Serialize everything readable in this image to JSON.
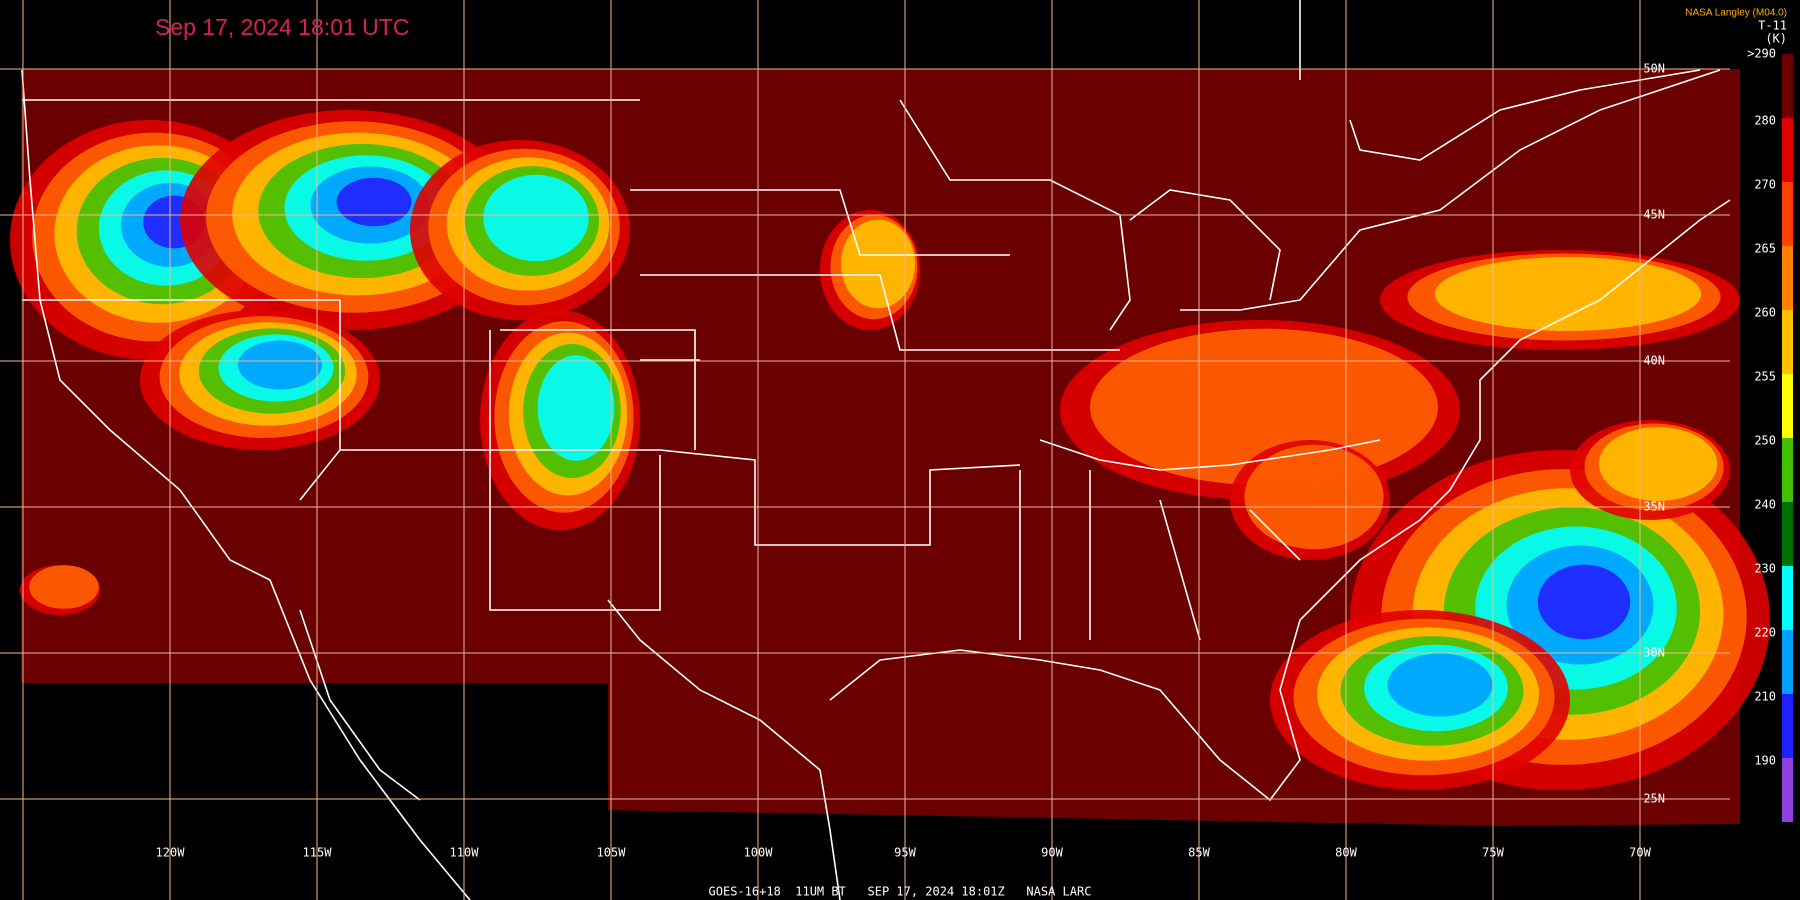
{
  "header": {
    "title": "Sep 17, 2024 18:01 UTC",
    "source": "NASA Langley (M04.0)",
    "product": "T-11",
    "unit": "(K)"
  },
  "color_scale": [
    {
      "label": ">290",
      "color": "#6b0000"
    },
    {
      "label": "280",
      "color": "#e00000"
    },
    {
      "label": "270",
      "color": "#ff4000"
    },
    {
      "label": "265",
      "color": "#ff8000"
    },
    {
      "label": "260",
      "color": "#ffc000"
    },
    {
      "label": "255",
      "color": "#ffff00"
    },
    {
      "label": "250",
      "color": "#40c000"
    },
    {
      "label": "240",
      "color": "#007000"
    },
    {
      "label": "230",
      "color": "#00ffff"
    },
    {
      "label": "220",
      "color": "#00a0ff"
    },
    {
      "label": "210",
      "color": "#2020ff"
    },
    {
      "label": "190",
      "color": "#9040e0"
    }
  ],
  "longitudes": [
    "120W",
    "115W",
    "110W",
    "105W",
    "100W",
    "95W",
    "90W",
    "85W",
    "80W",
    "75W",
    "70W"
  ],
  "latitudes": [
    "50N",
    "45N",
    "40N",
    "35N",
    "30N",
    "25N"
  ],
  "footer": "GOES-16+18  11UM BT   SEP 17, 2024 18:01Z   NASA LARC"
}
